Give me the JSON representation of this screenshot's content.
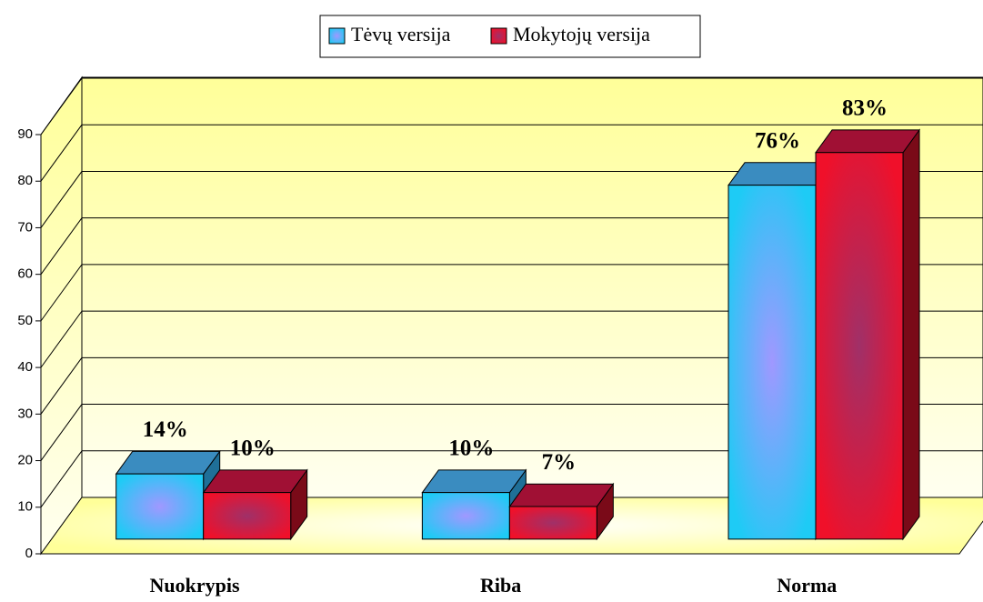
{
  "chart_data": {
    "type": "bar3d",
    "categories": [
      "Nuokrypis",
      "Riba",
      "Norma"
    ],
    "series": [
      {
        "name": "Tėvų versija",
        "color": "#1ecbf5",
        "values": [
          14,
          10,
          76
        ],
        "value_labels": [
          "14%",
          "10%",
          "76%"
        ]
      },
      {
        "name": "Mokytojų versija",
        "color": "#f0102a",
        "values": [
          10,
          7,
          83
        ],
        "value_labels": [
          "10%",
          "7%",
          "83%"
        ]
      }
    ],
    "ylim": [
      0,
      90
    ],
    "yticks": [
      0,
      10,
      20,
      30,
      40,
      50,
      60,
      70,
      80,
      90
    ],
    "grid": true,
    "legend": "top"
  }
}
